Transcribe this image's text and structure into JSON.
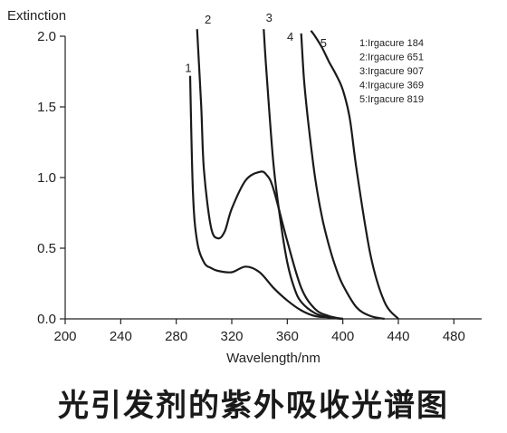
{
  "chart_data": {
    "type": "line",
    "ylabel": "Extinction",
    "xlabel": "Wavelength/nm",
    "xlim": [
      200,
      500
    ],
    "ylim": [
      0,
      2.0
    ],
    "x_ticks": [
      200,
      240,
      280,
      320,
      360,
      400,
      440,
      480
    ],
    "y_ticks": [
      0.0,
      0.5,
      1.0,
      1.5,
      2.0
    ],
    "x_tick_labels": [
      "200",
      "240",
      "280",
      "320",
      "360",
      "400",
      "440",
      "480"
    ],
    "y_tick_labels": [
      "0.0",
      "0.5",
      "1.0",
      "1.5",
      "2.0"
    ],
    "grid": false,
    "legend_position": "top-right",
    "legend": [
      "1:Irgacure 184",
      "2:Irgacure 651",
      "3:Irgacure 907",
      "4:Irgacure 369",
      "5:Irgacure 819"
    ],
    "series": [
      {
        "label": "1",
        "x": [
          290,
          292,
          295,
          300,
          305,
          310,
          320,
          330,
          340,
          350,
          360,
          370,
          380,
          390,
          400
        ],
        "y": [
          1.72,
          0.9,
          0.55,
          0.4,
          0.36,
          0.34,
          0.33,
          0.37,
          0.33,
          0.22,
          0.13,
          0.06,
          0.02,
          0.01,
          0.0
        ]
      },
      {
        "label": "2",
        "x": [
          295,
          298,
          300,
          305,
          310,
          315,
          320,
          330,
          340,
          345,
          350,
          360,
          370,
          380,
          390,
          400
        ],
        "y": [
          2.05,
          1.5,
          1.05,
          0.65,
          0.57,
          0.62,
          0.78,
          0.98,
          1.04,
          1.02,
          0.92,
          0.55,
          0.22,
          0.07,
          0.02,
          0.0
        ]
      },
      {
        "label": "3",
        "x": [
          343,
          345,
          350,
          355,
          360,
          365,
          370,
          380,
          390,
          400
        ],
        "y": [
          2.05,
          1.75,
          1.1,
          0.7,
          0.4,
          0.22,
          0.12,
          0.04,
          0.01,
          0.0
        ]
      },
      {
        "label": "4",
        "x": [
          370,
          372,
          375,
          380,
          385,
          390,
          395,
          400,
          410,
          420,
          430
        ],
        "y": [
          2.02,
          1.7,
          1.4,
          1.0,
          0.72,
          0.52,
          0.36,
          0.24,
          0.08,
          0.02,
          0.0
        ]
      },
      {
        "label": "5",
        "x": [
          377,
          380,
          385,
          390,
          395,
          400,
          405,
          410,
          420,
          430,
          440
        ],
        "y": [
          2.04,
          2.0,
          1.92,
          1.82,
          1.73,
          1.62,
          1.42,
          1.05,
          0.45,
          0.12,
          0.0
        ]
      }
    ]
  },
  "caption": "光引发剂的紫外吸收光谱图"
}
